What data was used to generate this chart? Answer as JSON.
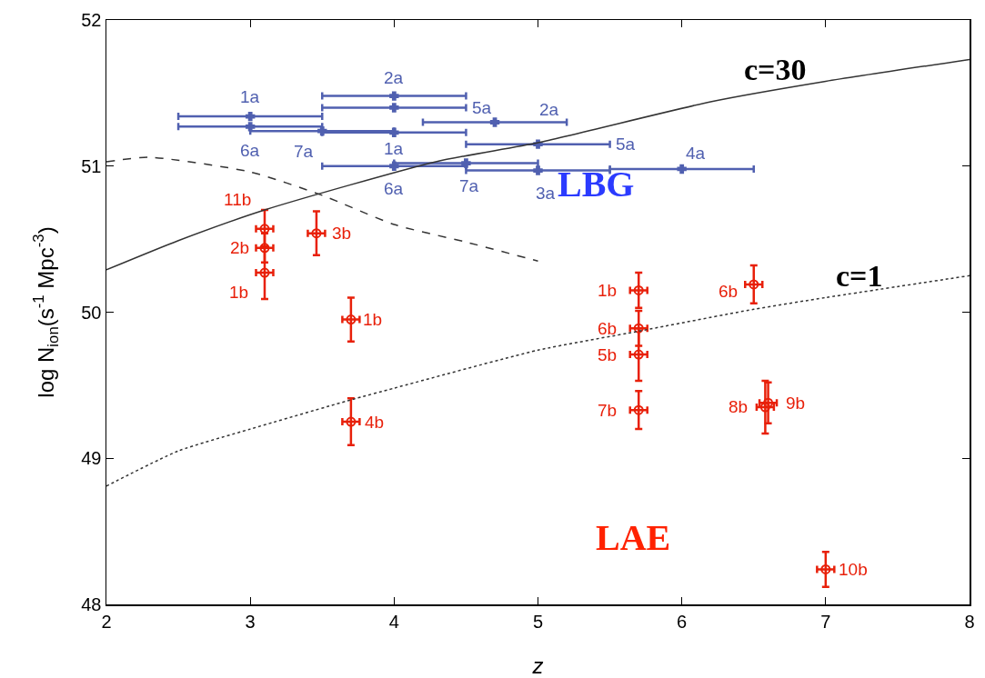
{
  "chart_data": {
    "type": "scatter",
    "xlabel": "z",
    "ylabel": "log N$_{ion}$(s$^{-1}$ Mpc$^{-3}$)",
    "xlim": [
      2,
      8
    ],
    "xticks": [
      2,
      3,
      4,
      5,
      6,
      7,
      8
    ],
    "ylim": [
      48,
      52
    ],
    "yticks": [
      48,
      49,
      50,
      51,
      52
    ],
    "grid": false,
    "series": [
      {
        "type": "scatter",
        "marker": "cross",
        "color": "#5060b0",
        "x": [
          3,
          3,
          4,
          4,
          3.5,
          4,
          4.7,
          5,
          4,
          4.5,
          5,
          6
        ],
        "values": [
          51.34,
          51.27,
          51.48,
          51.4,
          51.24,
          51.23,
          51.3,
          51.15,
          51.0,
          51.02,
          50.97,
          50.98
        ],
        "xerrors": [
          0.5,
          0.5,
          0.5,
          0.5,
          0.5,
          0.5,
          0.5,
          0.5,
          0.5,
          0.5,
          0.5,
          0.5
        ]
      },
      {
        "marker": "circle",
        "color": "#e8200a",
        "x": [
          3.1,
          3.1,
          3.1,
          3.46,
          3.7,
          3.7,
          5.7,
          5.7,
          5.7,
          5.7,
          6.5,
          6.58,
          6.6,
          7
        ],
        "values": [
          50.57,
          50.44,
          50.27,
          50.54,
          49.95,
          49.25,
          50.15,
          49.89,
          49.71,
          49.33,
          50.19,
          49.35,
          49.38,
          48.24
        ],
        "errors": [
          0.13,
          0.1,
          0.18,
          0.15,
          0.15,
          0.16,
          0.12,
          0.12,
          0.18,
          0.13,
          0.13,
          0.18,
          0.14,
          0.12
        ],
        "xerrors": [
          0.06,
          0.06,
          0.06,
          0.06,
          0.06,
          0.06,
          0.06,
          0.06,
          0.06,
          0.06,
          0.06,
          0.06,
          0.06,
          0.06
        ]
      },
      {
        "type": "line",
        "line_style": "solid",
        "color": "#333333",
        "x": [
          2,
          2.5,
          3.1,
          4.29,
          5,
          6.2,
          7,
          8
        ],
        "values": [
          50.29,
          50.49,
          50.7,
          51.03,
          51.16,
          51.44,
          51.58,
          51.73
        ]
      },
      {
        "type": "line",
        "line_style": "dashed",
        "color": "#333333",
        "x": [
          2,
          2.3,
          3,
          3.5,
          4,
          4.5,
          5
        ],
        "values": [
          51.03,
          51.06,
          50.96,
          50.8,
          50.6,
          50.48,
          50.35
        ]
      },
      {
        "type": "line",
        "line_style": "dotted",
        "color": "#333333",
        "x": [
          2,
          2.5,
          3,
          3.7,
          4,
          5,
          5.7,
          6.5,
          7,
          8
        ],
        "values": [
          48.81,
          49.05,
          49.2,
          49.4,
          49.48,
          49.74,
          49.87,
          50.02,
          50.1,
          50.25
        ]
      }
    ],
    "annotations": [
      "c=30",
      "c=1",
      "LBG",
      "LAE",
      "5a",
      "5a",
      {
        "text": "1a",
        "x": 3,
        "y": 51.34
      },
      {
        "text": "6a",
        "x": 3,
        "y": 51.27
      },
      {
        "text": "2a",
        "x": 4,
        "y": 51.48
      },
      {
        "text": "7a",
        "x": 3.5,
        "y": 51.24
      },
      {
        "text": "1a",
        "x": 4,
        "y": 51.23
      },
      {
        "text": "2a",
        "x": 4.7,
        "y": 51.3
      },
      {
        "text": "6a",
        "x": 4,
        "y": 51.0
      },
      {
        "text": "7a",
        "x": 4.5,
        "y": 51.02
      },
      {
        "text": "3a",
        "x": 5,
        "y": 50.97
      },
      {
        "text": "4a",
        "x": 6,
        "y": 50.98
      },
      {
        "text": "11b",
        "x": 3.1,
        "y": 50.57
      },
      {
        "text": "2b",
        "x": 3.1,
        "y": 50.44
      },
      {
        "text": "1b",
        "x": 3.1,
        "y": 50.27
      },
      {
        "text": "3b",
        "x": 3.46,
        "y": 50.54
      },
      {
        "text": "1b",
        "x": 3.7,
        "y": 49.95
      },
      {
        "text": "4b",
        "x": 3.7,
        "y": 49.25
      },
      {
        "text": "1b",
        "x": 5.7,
        "y": 50.15
      },
      {
        "text": "6b",
        "x": 5.7,
        "y": 49.89
      },
      {
        "text": "5b",
        "x": 5.7,
        "y": 49.71
      },
      {
        "text": "7b",
        "x": 5.7,
        "y": 49.33
      },
      {
        "text": "6b",
        "x": 6.5,
        "y": 50.19
      },
      {
        "text": "8b",
        "x": 6.58,
        "y": 49.35
      },
      {
        "text": "9b",
        "x": 6.6,
        "y": 49.38
      },
      {
        "text": "10b",
        "x": 7,
        "y": 48.24
      }
    ]
  }
}
